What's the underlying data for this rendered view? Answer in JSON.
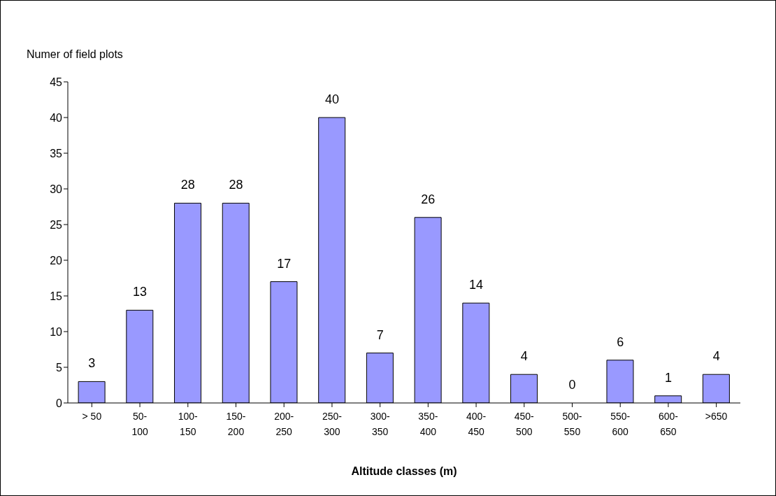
{
  "chart_data": {
    "type": "bar",
    "ylabel": "Numer of field plots",
    "xlabel": "Altitude classes (m)",
    "categories": [
      "> 50",
      "50-100",
      "100-150",
      "150-200",
      "200-250",
      "250-300",
      "300-350",
      "350-400",
      "400-450",
      "450-500",
      "500-550",
      "550-600",
      "600-650",
      ">650"
    ],
    "values": [
      3,
      13,
      28,
      28,
      17,
      40,
      7,
      26,
      14,
      4,
      0,
      6,
      1,
      4
    ],
    "color": "#9999ff",
    "ylim": [
      0,
      45
    ],
    "yticks": [
      0,
      5,
      10,
      15,
      20,
      25,
      30,
      35,
      40,
      45
    ],
    "data_labels": true,
    "grid": false
  }
}
